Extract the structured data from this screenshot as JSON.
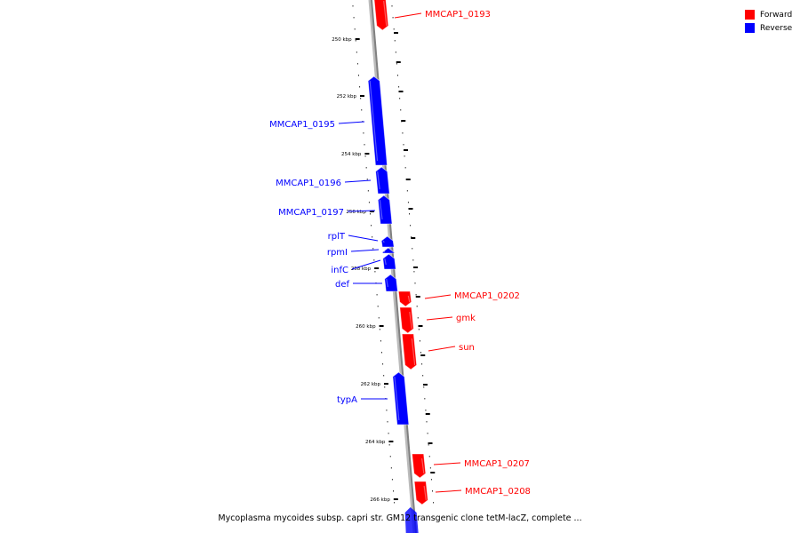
{
  "colors": {
    "forward": "#ff0000",
    "reverse": "#0000ff",
    "backbone": "#888888"
  },
  "legend": [
    {
      "label": "Forward",
      "color": "#ff0000"
    },
    {
      "label": "Reverse",
      "color": "#0000ff"
    }
  ],
  "caption": "Mycoplasma mycoides subsp. capri str. GM12 transgenic clone tetM-lacZ, complete ...",
  "kbp_ticks": [
    "250 kbp",
    "252 kbp",
    "254 kbp",
    "256 kbp",
    "258 kbp",
    "260 kbp",
    "262 kbp",
    "264 kbp",
    "266 kbp"
  ],
  "genes": [
    {
      "name": "MMCAP1_0193",
      "strand": "forward"
    },
    {
      "name": "MMCAP1_0195",
      "strand": "reverse"
    },
    {
      "name": "MMCAP1_0196",
      "strand": "reverse"
    },
    {
      "name": "MMCAP1_0197",
      "strand": "reverse"
    },
    {
      "name": "rplT",
      "strand": "reverse"
    },
    {
      "name": "rpmI",
      "strand": "reverse"
    },
    {
      "name": "infC",
      "strand": "reverse"
    },
    {
      "name": "def",
      "strand": "reverse"
    },
    {
      "name": "MMCAP1_0202",
      "strand": "forward"
    },
    {
      "name": "gmk",
      "strand": "forward"
    },
    {
      "name": "sun",
      "strand": "forward"
    },
    {
      "name": "typA",
      "strand": "reverse"
    },
    {
      "name": "MMCAP1_0207",
      "strand": "forward"
    },
    {
      "name": "MMCAP1_0208",
      "strand": "forward"
    }
  ]
}
